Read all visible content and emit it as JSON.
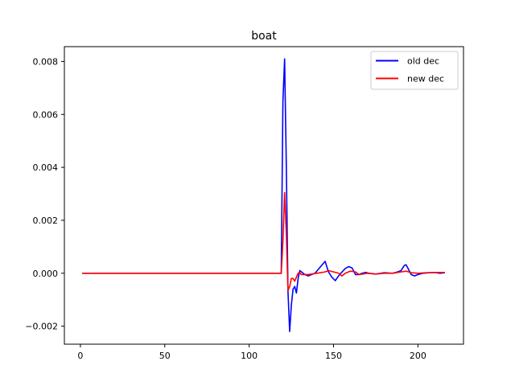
{
  "chart_data": {
    "type": "line",
    "title": "boat",
    "xlabel": "",
    "ylabel": "",
    "xlim": [
      -9.5,
      227
    ],
    "ylim": [
      -0.00268,
      0.00856
    ],
    "xticks": [
      0,
      50,
      100,
      150,
      200
    ],
    "yticks": [
      -0.002,
      0.0,
      0.002,
      0.004,
      0.006,
      0.008
    ],
    "xtick_labels": [
      "0",
      "50",
      "100",
      "150",
      "200"
    ],
    "ytick_labels": [
      "−0.002",
      "0.000",
      "0.002",
      "0.004",
      "0.006",
      "0.008"
    ],
    "grid": false,
    "legend_position": "top-right",
    "series": [
      {
        "name": "old dec",
        "color": "#0000ff",
        "x": [
          1,
          50,
          100,
          119,
          120,
          121,
          122,
          123,
          124,
          125,
          126,
          127,
          128,
          129,
          130,
          131,
          133,
          135,
          137,
          139,
          141,
          143,
          145,
          146,
          147,
          149,
          151,
          153,
          155,
          157,
          159,
          161,
          163,
          165,
          167,
          169,
          171,
          175,
          180,
          185,
          188,
          190,
          192,
          193,
          194,
          196,
          198,
          200,
          203,
          207,
          210,
          213,
          216
        ],
        "y": [
          0,
          0,
          0,
          0,
          0.0065,
          0.0081,
          0.0041,
          -0.0007,
          -0.0022,
          -0.0012,
          -0.0006,
          -0.0005,
          -0.00075,
          -0.0002,
          0.0001,
          5e-05,
          -5e-05,
          -0.0001,
          -5e-05,
          0.0,
          0.00015,
          0.0003,
          0.00045,
          0.00025,
          5e-05,
          -0.00015,
          -0.00028,
          -0.0001,
          5e-05,
          0.00018,
          0.00025,
          0.0002,
          -5e-05,
          -5e-05,
          0.0,
          3e-05,
          0.0,
          -3e-05,
          2e-05,
          0.0,
          5e-05,
          0.0001,
          0.0003,
          0.00032,
          0.0002,
          -5e-05,
          -0.0001,
          -5e-05,
          0.0,
          2e-05,
          3e-05,
          0.0,
          2e-05
        ]
      },
      {
        "name": "new dec",
        "color": "#ff0000",
        "x": [
          1,
          50,
          100,
          119,
          120,
          121,
          122,
          123,
          124,
          125,
          126,
          127,
          128,
          129,
          130,
          131,
          135,
          140,
          145,
          147,
          150,
          153,
          155,
          157,
          160,
          163,
          165,
          170,
          175,
          180,
          185,
          190,
          193,
          196,
          200,
          205,
          210,
          216
        ],
        "y": [
          0,
          0,
          0,
          0,
          0.0012,
          0.00305,
          0.0015,
          -0.00065,
          -0.0005,
          -0.0002,
          -0.0002,
          -0.0003,
          -0.00015,
          0.0,
          2e-05,
          -5e-05,
          -5e-05,
          0.0,
          5e-05,
          0.0001,
          5e-05,
          0.0,
          -0.0001,
          0.0,
          8e-05,
          5e-05,
          -5e-05,
          0.0,
          -3e-05,
          0.0,
          0.0,
          5e-05,
          8e-05,
          2e-05,
          0.0,
          2e-05,
          3e-05,
          3e-05
        ]
      }
    ]
  }
}
